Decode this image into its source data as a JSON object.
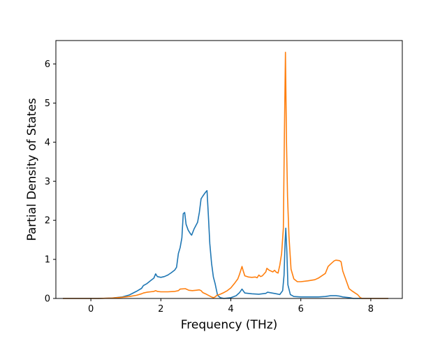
{
  "chart_data": {
    "type": "line",
    "title": "",
    "xlabel": "Frequency (THz)",
    "ylabel": "Partial Density of States",
    "xlim": [
      -1.0,
      8.9
    ],
    "ylim": [
      0,
      6.6
    ],
    "xticks": [
      0,
      2,
      4,
      6,
      8
    ],
    "yticks": [
      0,
      1,
      2,
      3,
      4,
      5,
      6
    ],
    "grid": false,
    "legend": "none",
    "series": [
      {
        "color": "#1f77b4",
        "points": [
          [
            -0.8,
            0
          ],
          [
            0.2,
            0.0
          ],
          [
            0.6,
            0.01
          ],
          [
            0.9,
            0.04
          ],
          [
            1.1,
            0.09
          ],
          [
            1.3,
            0.18
          ],
          [
            1.45,
            0.26
          ],
          [
            1.5,
            0.33
          ],
          [
            1.6,
            0.38
          ],
          [
            1.7,
            0.45
          ],
          [
            1.8,
            0.52
          ],
          [
            1.85,
            0.63
          ],
          [
            1.9,
            0.56
          ],
          [
            2.0,
            0.54
          ],
          [
            2.1,
            0.56
          ],
          [
            2.2,
            0.6
          ],
          [
            2.3,
            0.66
          ],
          [
            2.4,
            0.73
          ],
          [
            2.45,
            0.8
          ],
          [
            2.5,
            1.15
          ],
          [
            2.55,
            1.3
          ],
          [
            2.6,
            1.55
          ],
          [
            2.64,
            2.17
          ],
          [
            2.68,
            2.2
          ],
          [
            2.72,
            1.9
          ],
          [
            2.78,
            1.75
          ],
          [
            2.85,
            1.65
          ],
          [
            2.88,
            1.62
          ],
          [
            2.95,
            1.78
          ],
          [
            3.05,
            1.95
          ],
          [
            3.1,
            2.2
          ],
          [
            3.15,
            2.55
          ],
          [
            3.2,
            2.62
          ],
          [
            3.28,
            2.72
          ],
          [
            3.32,
            2.76
          ],
          [
            3.36,
            2.1
          ],
          [
            3.4,
            1.4
          ],
          [
            3.45,
            0.9
          ],
          [
            3.5,
            0.55
          ],
          [
            3.55,
            0.38
          ],
          [
            3.58,
            0.25
          ],
          [
            3.62,
            0.08
          ],
          [
            3.7,
            0.02
          ],
          [
            3.8,
            0.0
          ],
          [
            4.0,
            0.02
          ],
          [
            4.15,
            0.07
          ],
          [
            4.25,
            0.15
          ],
          [
            4.32,
            0.24
          ],
          [
            4.4,
            0.14
          ],
          [
            4.6,
            0.12
          ],
          [
            4.8,
            0.11
          ],
          [
            5.0,
            0.13
          ],
          [
            5.05,
            0.16
          ],
          [
            5.3,
            0.12
          ],
          [
            5.4,
            0.1
          ],
          [
            5.48,
            0.2
          ],
          [
            5.52,
            0.6
          ],
          [
            5.55,
            1.45
          ],
          [
            5.57,
            1.8
          ],
          [
            5.6,
            1.2
          ],
          [
            5.63,
            0.35
          ],
          [
            5.7,
            0.1
          ],
          [
            5.8,
            0.05
          ],
          [
            6.0,
            0.04
          ],
          [
            6.5,
            0.04
          ],
          [
            6.7,
            0.05
          ],
          [
            6.85,
            0.07
          ],
          [
            7.0,
            0.07
          ],
          [
            7.1,
            0.06
          ],
          [
            7.2,
            0.04
          ],
          [
            7.4,
            0.02
          ],
          [
            7.5,
            0.0
          ],
          [
            8.5,
            0.0
          ]
        ]
      },
      {
        "color": "#ff7f0e",
        "points": [
          [
            -0.8,
            0
          ],
          [
            0.2,
            0.0
          ],
          [
            0.6,
            0.01
          ],
          [
            0.9,
            0.03
          ],
          [
            1.1,
            0.05
          ],
          [
            1.3,
            0.08
          ],
          [
            1.45,
            0.12
          ],
          [
            1.5,
            0.14
          ],
          [
            1.6,
            0.16
          ],
          [
            1.7,
            0.17
          ],
          [
            1.8,
            0.18
          ],
          [
            1.85,
            0.2
          ],
          [
            1.9,
            0.18
          ],
          [
            2.0,
            0.17
          ],
          [
            2.2,
            0.17
          ],
          [
            2.4,
            0.18
          ],
          [
            2.5,
            0.2
          ],
          [
            2.55,
            0.24
          ],
          [
            2.7,
            0.25
          ],
          [
            2.8,
            0.21
          ],
          [
            2.9,
            0.2
          ],
          [
            3.0,
            0.21
          ],
          [
            3.1,
            0.22
          ],
          [
            3.15,
            0.2
          ],
          [
            3.2,
            0.15
          ],
          [
            3.3,
            0.11
          ],
          [
            3.4,
            0.06
          ],
          [
            3.45,
            0.04
          ],
          [
            3.5,
            0.02
          ],
          [
            3.55,
            0.04
          ],
          [
            3.6,
            0.08
          ],
          [
            3.7,
            0.11
          ],
          [
            3.8,
            0.15
          ],
          [
            3.9,
            0.2
          ],
          [
            4.0,
            0.27
          ],
          [
            4.1,
            0.38
          ],
          [
            4.2,
            0.5
          ],
          [
            4.25,
            0.62
          ],
          [
            4.32,
            0.82
          ],
          [
            4.35,
            0.72
          ],
          [
            4.4,
            0.58
          ],
          [
            4.5,
            0.55
          ],
          [
            4.6,
            0.54
          ],
          [
            4.7,
            0.55
          ],
          [
            4.75,
            0.53
          ],
          [
            4.8,
            0.6
          ],
          [
            4.85,
            0.56
          ],
          [
            4.9,
            0.58
          ],
          [
            5.0,
            0.68
          ],
          [
            5.03,
            0.77
          ],
          [
            5.1,
            0.72
          ],
          [
            5.2,
            0.68
          ],
          [
            5.25,
            0.72
          ],
          [
            5.3,
            0.67
          ],
          [
            5.35,
            0.65
          ],
          [
            5.4,
            0.85
          ],
          [
            5.45,
            1.15
          ],
          [
            5.5,
            1.8
          ],
          [
            5.53,
            4.2
          ],
          [
            5.56,
            6.3
          ],
          [
            5.59,
            4.0
          ],
          [
            5.62,
            2.6
          ],
          [
            5.66,
            1.6
          ],
          [
            5.72,
            0.75
          ],
          [
            5.8,
            0.5
          ],
          [
            5.9,
            0.43
          ],
          [
            6.0,
            0.43
          ],
          [
            6.2,
            0.45
          ],
          [
            6.4,
            0.48
          ],
          [
            6.5,
            0.52
          ],
          [
            6.6,
            0.58
          ],
          [
            6.7,
            0.64
          ],
          [
            6.78,
            0.82
          ],
          [
            6.85,
            0.88
          ],
          [
            6.95,
            0.96
          ],
          [
            7.0,
            0.98
          ],
          [
            7.1,
            0.97
          ],
          [
            7.15,
            0.94
          ],
          [
            7.2,
            0.7
          ],
          [
            7.28,
            0.5
          ],
          [
            7.38,
            0.25
          ],
          [
            7.45,
            0.2
          ],
          [
            7.55,
            0.14
          ],
          [
            7.62,
            0.1
          ],
          [
            7.7,
            0.02
          ],
          [
            7.75,
            0.0
          ],
          [
            8.5,
            0.0
          ]
        ]
      }
    ]
  }
}
